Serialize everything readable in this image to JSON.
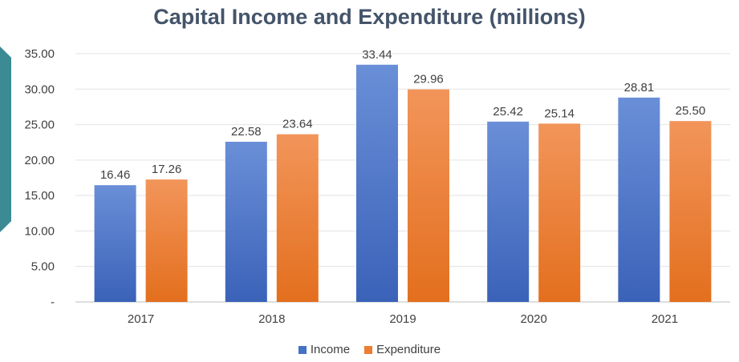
{
  "chart_data": {
    "type": "bar",
    "title": "Capital Income and Expenditure (millions)",
    "categories": [
      "2017",
      "2018",
      "2019",
      "2020",
      "2021"
    ],
    "series": [
      {
        "name": "Income",
        "values": [
          16.46,
          22.58,
          33.44,
          25.42,
          28.81
        ],
        "labels": [
          "16.46",
          "22.58",
          "33.44",
          "25.42",
          "28.81"
        ],
        "color": "#4472c4"
      },
      {
        "name": "Expenditure",
        "values": [
          17.26,
          23.64,
          29.96,
          25.14,
          25.5
        ],
        "labels": [
          "17.26",
          "23.64",
          "29.96",
          "25.14",
          "25.50"
        ],
        "color": "#ed7d31"
      }
    ],
    "yticks": [
      "-",
      "5.00",
      "10.00",
      "15.00",
      "20.00",
      "25.00",
      "30.00",
      "35.00"
    ],
    "ylim": [
      0,
      35
    ],
    "grid": true,
    "legend_position": "bottom"
  }
}
